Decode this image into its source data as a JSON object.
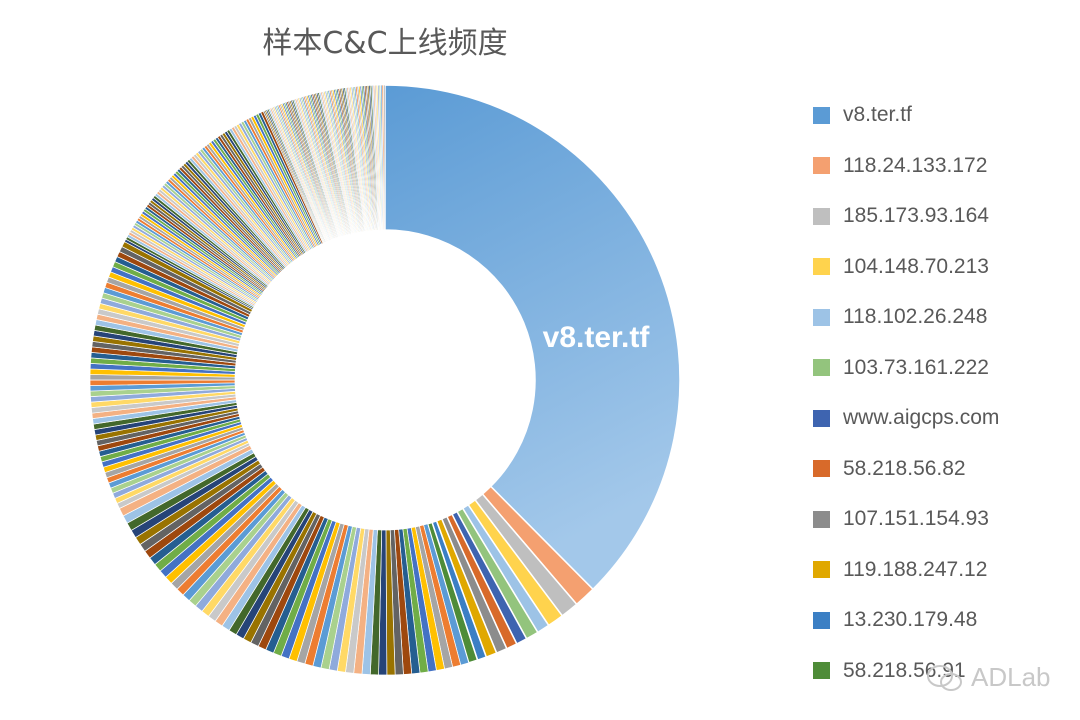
{
  "chart_data": {
    "type": "pie",
    "variant": "donut",
    "title": "样本C&C上线频度",
    "data_label": "v8.ter.tf",
    "legend_position": "right",
    "slices": [
      {
        "name": "v8.ter.tf",
        "value": 37.7,
        "color": "#5B9BD5"
      },
      {
        "name": "118.24.133.172",
        "value": 1.2,
        "color": "#F4A070"
      },
      {
        "name": "185.173.93.164",
        "value": 1.0,
        "color": "#BFBFBF"
      },
      {
        "name": "104.148.70.213",
        "value": 0.9,
        "color": "#FFD34D"
      },
      {
        "name": "118.102.26.248",
        "value": 0.7,
        "color": "#9DC3E6"
      },
      {
        "name": "103.73.161.222",
        "value": 0.7,
        "color": "#93C47D"
      },
      {
        "name": "www.aigcps.com",
        "value": 0.6,
        "color": "#3E64B0"
      },
      {
        "name": "58.218.56.82",
        "value": 0.6,
        "color": "#D86A2A"
      },
      {
        "name": "107.151.154.93",
        "value": 0.6,
        "color": "#8C8C8C"
      },
      {
        "name": "119.188.247.12",
        "value": 0.6,
        "color": "#E0A800"
      },
      {
        "name": "13.230.179.48",
        "value": 0.5,
        "color": "#3B7FC4"
      },
      {
        "name": "58.218.56.91",
        "value": 0.5,
        "color": "#4E8C38"
      }
    ],
    "remaining_slices": [
      {
        "count": 50,
        "value": 0.45
      },
      {
        "count": 50,
        "value": 0.3
      },
      {
        "count": 70,
        "value": 0.15
      },
      {
        "count": 85,
        "value": 0.08
      }
    ],
    "palette": [
      "#5B9BD5",
      "#ED7D31",
      "#A5A5A5",
      "#FFC000",
      "#4472C4",
      "#70AD47",
      "#255E91",
      "#9E480E",
      "#636363",
      "#997300",
      "#264478",
      "#43682B",
      "#9DC3E6",
      "#F4B183",
      "#C9C9C9",
      "#FFD966",
      "#8FAADC",
      "#A9D18E"
    ]
  },
  "watermark": "ADLab"
}
